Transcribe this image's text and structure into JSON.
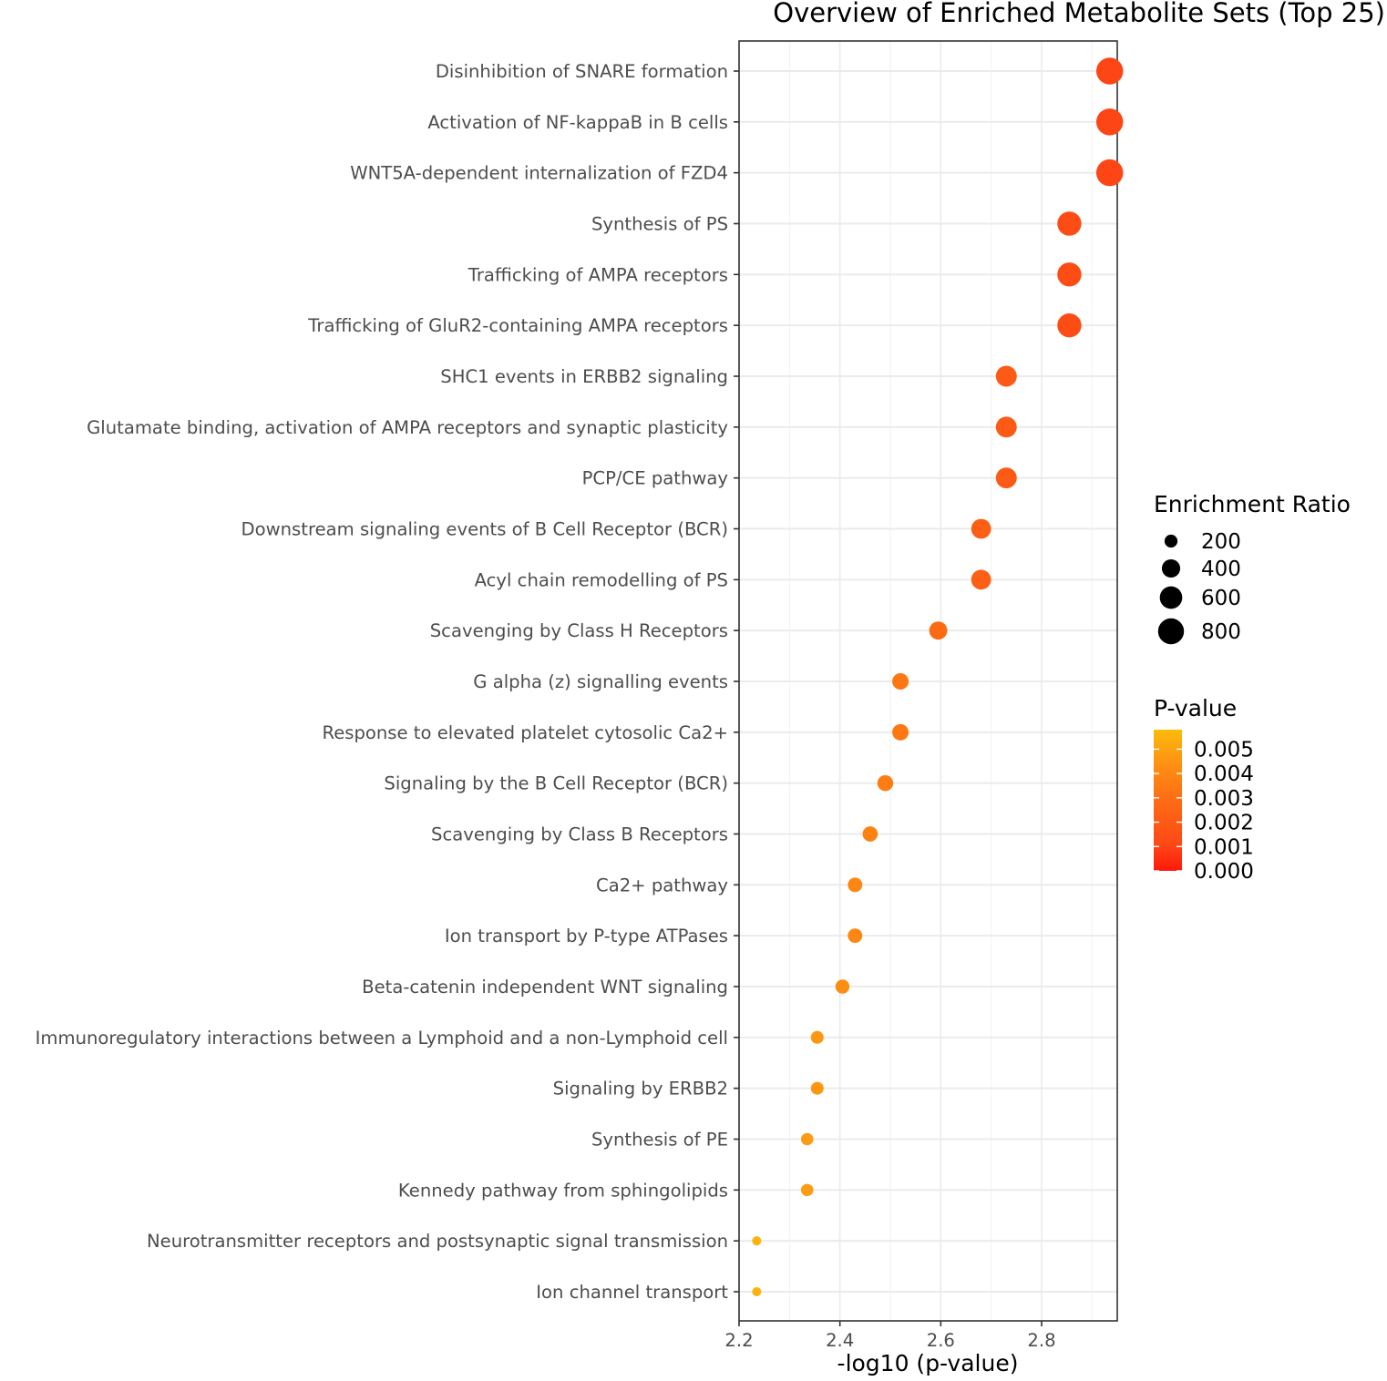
{
  "chart_data": {
    "type": "scatter",
    "title": "Overview of Enriched Metabolite Sets (Top 25)",
    "xlabel": "-log10 (p-value)",
    "ylabel": "",
    "xlim": [
      2.2,
      2.95
    ],
    "xticks": [
      "2.2",
      "2.4",
      "2.6",
      "2.8"
    ],
    "grid": true,
    "legend_position": "right",
    "size_legend": {
      "title": "Enrichment Ratio",
      "values": [
        200,
        400,
        600,
        800
      ],
      "labels": [
        "200",
        "400",
        "600",
        "800"
      ]
    },
    "color_legend": {
      "title": "P-value",
      "ticks": [
        "0.005",
        "0.004",
        "0.003",
        "0.002",
        "0.001",
        "0.000"
      ],
      "range": [
        0.0,
        0.0058
      ],
      "low_color": "#ff1a0a",
      "high_color": "#fcbc0c"
    },
    "points": [
      {
        "label": "Disinhibition of SNARE formation",
        "x": 2.935,
        "p": 0.00116,
        "ratio": 860,
        "color": "#fd4516"
      },
      {
        "label": "Activation of NF-kappaB in B cells",
        "x": 2.935,
        "p": 0.00116,
        "ratio": 860,
        "color": "#fd4516"
      },
      {
        "label": "WNT5A-dependent internalization of FZD4",
        "x": 2.935,
        "p": 0.00116,
        "ratio": 860,
        "color": "#fd4516"
      },
      {
        "label": "Synthesis of PS",
        "x": 2.855,
        "p": 0.0014,
        "ratio": 690,
        "color": "#fd4d14"
      },
      {
        "label": "Trafficking of AMPA receptors",
        "x": 2.855,
        "p": 0.0014,
        "ratio": 690,
        "color": "#fd4d14"
      },
      {
        "label": "Trafficking of GluR2-containing AMPA receptors",
        "x": 2.855,
        "p": 0.0014,
        "ratio": 690,
        "color": "#fd4d14"
      },
      {
        "label": "SHC1 events in ERBB2 signaling",
        "x": 2.73,
        "p": 0.00186,
        "ratio": 520,
        "color": "#fd5a16"
      },
      {
        "label": "Glutamate binding, activation of AMPA receptors and synaptic plasticity",
        "x": 2.73,
        "p": 0.00186,
        "ratio": 520,
        "color": "#fd5a16"
      },
      {
        "label": "PCP/CE pathway",
        "x": 2.73,
        "p": 0.00186,
        "ratio": 520,
        "color": "#fd5a16"
      },
      {
        "label": "Downstream signaling events of B Cell Receptor (BCR)",
        "x": 2.68,
        "p": 0.00209,
        "ratio": 470,
        "color": "#fd6015"
      },
      {
        "label": "Acyl chain remodelling of PS",
        "x": 2.68,
        "p": 0.00209,
        "ratio": 470,
        "color": "#fd6015"
      },
      {
        "label": "Scavenging by Class H Receptors",
        "x": 2.595,
        "p": 0.00254,
        "ratio": 390,
        "color": "#fd6a14"
      },
      {
        "label": "G alpha (z) signalling events",
        "x": 2.52,
        "p": 0.00302,
        "ratio": 320,
        "color": "#fd7714"
      },
      {
        "label": "Response to elevated platelet cytosolic Ca2+",
        "x": 2.52,
        "p": 0.00302,
        "ratio": 320,
        "color": "#fd7714"
      },
      {
        "label": "Signaling by the B Cell Receptor (BCR)",
        "x": 2.49,
        "p": 0.00324,
        "ratio": 300,
        "color": "#fd7c14"
      },
      {
        "label": "Scavenging by Class B Receptors",
        "x": 2.46,
        "p": 0.00347,
        "ratio": 275,
        "color": "#fd8212"
      },
      {
        "label": "Ca2+ pathway",
        "x": 2.43,
        "p": 0.00372,
        "ratio": 250,
        "color": "#fd8712"
      },
      {
        "label": "Ion transport by P-type ATPases",
        "x": 2.43,
        "p": 0.00372,
        "ratio": 250,
        "color": "#fd8712"
      },
      {
        "label": "Beta-catenin independent WNT signaling",
        "x": 2.405,
        "p": 0.00394,
        "ratio": 235,
        "color": "#fd8c12"
      },
      {
        "label": "Immunoregulatory interactions between a Lymphoid and a non-Lymphoid cell",
        "x": 2.355,
        "p": 0.00442,
        "ratio": 195,
        "color": "#fd9712"
      },
      {
        "label": "Signaling by ERBB2",
        "x": 2.355,
        "p": 0.00442,
        "ratio": 195,
        "color": "#fd9712"
      },
      {
        "label": "Synthesis of PE",
        "x": 2.335,
        "p": 0.00462,
        "ratio": 180,
        "color": "#fd9c12"
      },
      {
        "label": "Kennedy pathway from sphingolipids",
        "x": 2.335,
        "p": 0.00462,
        "ratio": 180,
        "color": "#fd9c12"
      },
      {
        "label": "Neurotransmitter receptors and postsynaptic signal transmission",
        "x": 2.235,
        "p": 0.00582,
        "ratio": 100,
        "color": "#fbb40e"
      },
      {
        "label": "Ion channel transport",
        "x": 2.235,
        "p": 0.00582,
        "ratio": 100,
        "color": "#fbb40e"
      }
    ]
  }
}
